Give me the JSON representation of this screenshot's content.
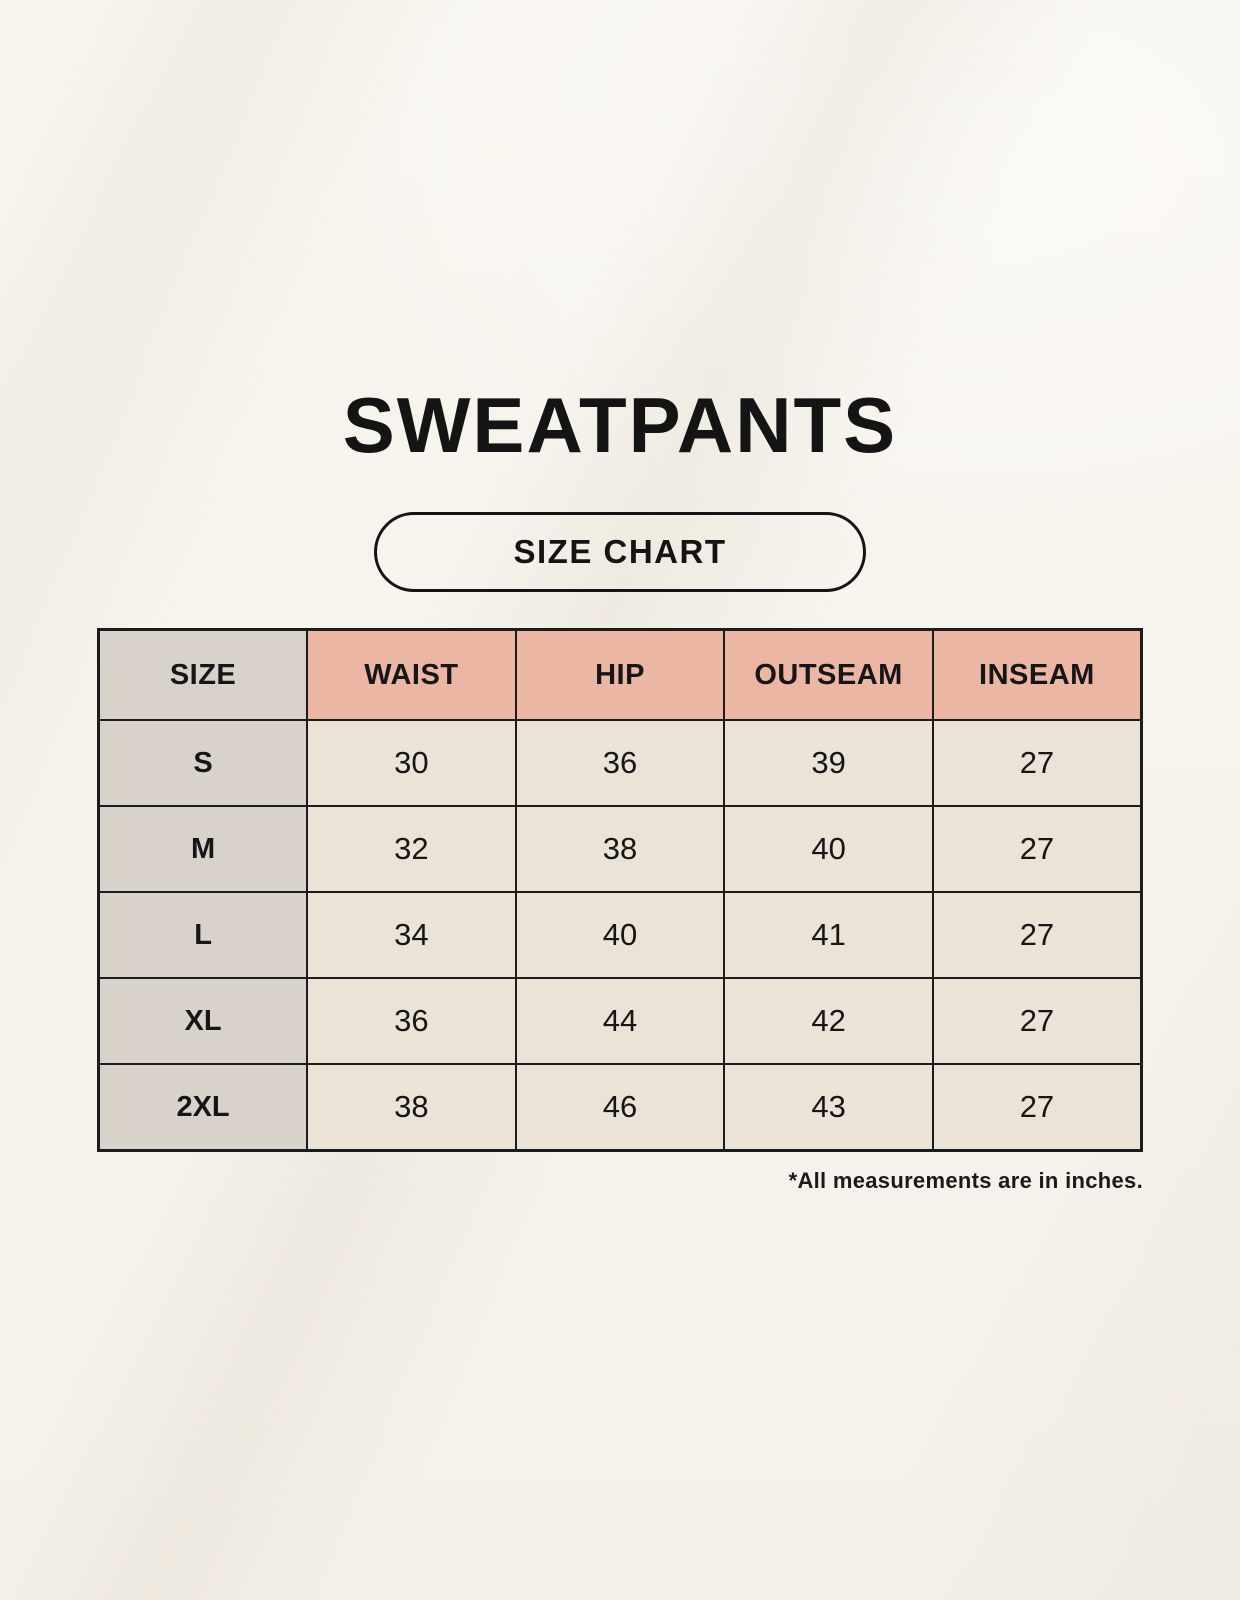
{
  "page": {
    "title": "SWEATPANTS",
    "badge_label": "SIZE CHART",
    "footnote": "*All measurements are in inches."
  },
  "table": {
    "headers": [
      "SIZE",
      "WAIST",
      "HIP",
      "OUTSEAM",
      "INSEAM"
    ],
    "rows": [
      {
        "size": "S",
        "waist": "30",
        "hip": "36",
        "outseam": "39",
        "inseam": "27"
      },
      {
        "size": "M",
        "waist": "32",
        "hip": "38",
        "outseam": "40",
        "inseam": "27"
      },
      {
        "size": "L",
        "waist": "34",
        "hip": "40",
        "outseam": "41",
        "inseam": "27"
      },
      {
        "size": "XL",
        "waist": "36",
        "hip": "44",
        "outseam": "42",
        "inseam": "27"
      },
      {
        "size": "2XL",
        "waist": "38",
        "hip": "46",
        "outseam": "43",
        "inseam": "27"
      }
    ],
    "units": "inches"
  },
  "colors": {
    "page_background": "#f7f4ee",
    "header_accent": "#ecb6a5",
    "size_column_background": "#d8d2cb",
    "cell_background": "#eae3d6",
    "table_border": "#1c1c1c",
    "text": "#161616"
  }
}
